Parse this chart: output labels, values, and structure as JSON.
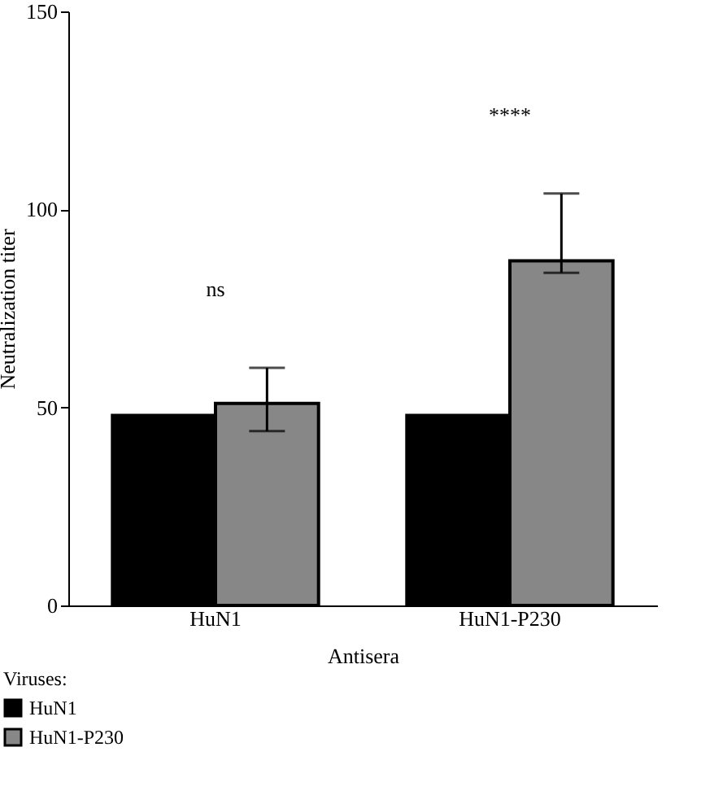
{
  "chart_data": {
    "type": "bar",
    "xlabel": "Antisera",
    "ylabel": "Neutralization titer",
    "legend_title": "Viruses:",
    "categories": [
      "HuN1",
      "HuN1-P230"
    ],
    "series": [
      {
        "name": "HuN1",
        "color": "#000000",
        "values": [
          48,
          48
        ]
      },
      {
        "name": "HuN1-P230",
        "color": "#878787",
        "values": [
          51,
          87
        ],
        "errors": [
          [
            44,
            60
          ],
          [
            84,
            104
          ]
        ]
      }
    ],
    "ylim": [
      0,
      150
    ],
    "yticks": [
      0,
      50,
      100,
      150
    ],
    "grid": false,
    "legend": "bottom",
    "annotations": [
      "ns",
      "****"
    ]
  }
}
